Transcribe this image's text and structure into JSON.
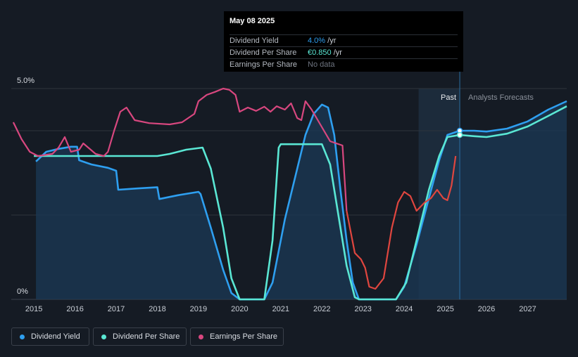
{
  "tooltip": {
    "date": "May 08 2025",
    "rows": [
      {
        "label": "Dividend Yield",
        "value": "4.0%",
        "unit": " /yr"
      },
      {
        "label": "Dividend Per Share",
        "value": "€0.850",
        "unit": " /yr"
      },
      {
        "label": "Earnings Per Share",
        "value": "No data",
        "unit": ""
      }
    ]
  },
  "sections": {
    "past": "Past",
    "forecast": "Analysts Forecasts"
  },
  "legend": [
    {
      "label": "Dividend Yield",
      "color": "#2e9ff0"
    },
    {
      "label": "Dividend Per Share",
      "color": "#5ae7d4"
    },
    {
      "label": "Earnings Per Share",
      "color": "#d8477f"
    }
  ],
  "colors": {
    "yield": "#2e9ff0",
    "dps": "#5ae7d4",
    "eps": "#d8477f",
    "eps_recent": "#e0463f",
    "area": "#1b3a56",
    "grid": "#2e343d",
    "past_band": "#1c2b3b"
  },
  "chart_data": {
    "type": "line",
    "xlim": [
      2014.45,
      2027.95
    ],
    "ylim": [
      0,
      5.0
    ],
    "y_tick_labels": [
      "0%",
      "5.0%"
    ],
    "x_ticks": [
      2015,
      2016,
      2017,
      2018,
      2019,
      2020,
      2021,
      2022,
      2023,
      2024,
      2025,
      2026,
      2027
    ],
    "past_band": [
      2024.35,
      2025.35
    ],
    "marker_x": 2025.35,
    "series": [
      {
        "name": "Dividend Yield",
        "key": "yield",
        "fill": true,
        "points": [
          [
            2015.05,
            3.27
          ],
          [
            2015.3,
            3.5
          ],
          [
            2015.6,
            3.57
          ],
          [
            2015.9,
            3.62
          ],
          [
            2016.05,
            3.62
          ],
          [
            2016.1,
            3.3
          ],
          [
            2016.4,
            3.2
          ],
          [
            2016.8,
            3.12
          ],
          [
            2017.0,
            3.05
          ],
          [
            2017.05,
            2.6
          ],
          [
            2017.5,
            2.63
          ],
          [
            2018.0,
            2.66
          ],
          [
            2018.05,
            2.38
          ],
          [
            2018.5,
            2.47
          ],
          [
            2019.0,
            2.55
          ],
          [
            2019.05,
            2.5
          ],
          [
            2019.3,
            1.7
          ],
          [
            2019.6,
            0.7
          ],
          [
            2019.8,
            0.15
          ],
          [
            2020.0,
            0.0
          ],
          [
            2020.6,
            0.0
          ],
          [
            2020.8,
            0.4
          ],
          [
            2021.1,
            1.9
          ],
          [
            2021.4,
            3.1
          ],
          [
            2021.6,
            3.9
          ],
          [
            2021.8,
            4.4
          ],
          [
            2022.0,
            4.62
          ],
          [
            2022.15,
            4.55
          ],
          [
            2022.3,
            3.9
          ],
          [
            2022.45,
            2.6
          ],
          [
            2022.6,
            1.4
          ],
          [
            2022.75,
            0.4
          ],
          [
            2022.9,
            0.0
          ],
          [
            2023.8,
            0.0
          ],
          [
            2024.0,
            0.3
          ],
          [
            2024.3,
            1.3
          ],
          [
            2024.6,
            2.4
          ],
          [
            2024.85,
            3.3
          ],
          [
            2025.05,
            3.9
          ],
          [
            2025.35,
            4.0
          ],
          [
            2025.7,
            4.0
          ],
          [
            2026.0,
            3.98
          ],
          [
            2026.5,
            4.05
          ],
          [
            2027.0,
            4.22
          ],
          [
            2027.5,
            4.5
          ],
          [
            2027.95,
            4.7
          ]
        ]
      },
      {
        "name": "Dividend Per Share",
        "key": "dps",
        "fill": false,
        "points": [
          [
            2015.0,
            3.4
          ],
          [
            2015.5,
            3.4
          ],
          [
            2016.0,
            3.4
          ],
          [
            2017.0,
            3.4
          ],
          [
            2018.0,
            3.4
          ],
          [
            2018.3,
            3.45
          ],
          [
            2018.7,
            3.55
          ],
          [
            2019.1,
            3.6
          ],
          [
            2019.3,
            3.1
          ],
          [
            2019.6,
            1.7
          ],
          [
            2019.8,
            0.5
          ],
          [
            2020.0,
            0.0
          ],
          [
            2020.6,
            0.0
          ],
          [
            2020.8,
            1.4
          ],
          [
            2020.95,
            3.6
          ],
          [
            2021.0,
            3.68
          ],
          [
            2022.0,
            3.68
          ],
          [
            2022.2,
            3.2
          ],
          [
            2022.4,
            2.0
          ],
          [
            2022.6,
            0.8
          ],
          [
            2022.8,
            0.05
          ],
          [
            2022.9,
            0.0
          ],
          [
            2023.8,
            0.0
          ],
          [
            2024.05,
            0.4
          ],
          [
            2024.35,
            1.6
          ],
          [
            2024.6,
            2.6
          ],
          [
            2024.85,
            3.4
          ],
          [
            2025.05,
            3.85
          ],
          [
            2025.35,
            3.9
          ],
          [
            2025.7,
            3.87
          ],
          [
            2026.0,
            3.85
          ],
          [
            2026.5,
            3.93
          ],
          [
            2027.0,
            4.1
          ],
          [
            2027.5,
            4.35
          ],
          [
            2027.95,
            4.58
          ]
        ]
      },
      {
        "name": "Earnings Per Share",
        "key": "eps",
        "fill": false,
        "points": [
          [
            2014.5,
            4.2
          ],
          [
            2014.7,
            3.8
          ],
          [
            2014.9,
            3.5
          ],
          [
            2015.1,
            3.4
          ],
          [
            2015.45,
            3.45
          ],
          [
            2015.6,
            3.6
          ],
          [
            2015.75,
            3.85
          ],
          [
            2015.9,
            3.5
          ],
          [
            2016.1,
            3.55
          ],
          [
            2016.2,
            3.7
          ],
          [
            2016.5,
            3.45
          ],
          [
            2016.7,
            3.4
          ],
          [
            2016.8,
            3.5
          ],
          [
            2016.95,
            4.0
          ],
          [
            2017.1,
            4.45
          ],
          [
            2017.25,
            4.55
          ],
          [
            2017.45,
            4.25
          ],
          [
            2017.8,
            4.18
          ],
          [
            2018.3,
            4.15
          ],
          [
            2018.6,
            4.2
          ],
          [
            2018.9,
            4.4
          ],
          [
            2019.0,
            4.7
          ],
          [
            2019.2,
            4.85
          ],
          [
            2019.4,
            4.92
          ],
          [
            2019.6,
            5.0
          ],
          [
            2019.75,
            4.97
          ],
          [
            2019.9,
            4.85
          ],
          [
            2020.0,
            4.45
          ],
          [
            2020.2,
            4.55
          ],
          [
            2020.4,
            4.47
          ],
          [
            2020.6,
            4.57
          ],
          [
            2020.75,
            4.45
          ],
          [
            2020.9,
            4.58
          ],
          [
            2021.1,
            4.5
          ],
          [
            2021.25,
            4.65
          ],
          [
            2021.4,
            4.3
          ],
          [
            2021.5,
            4.25
          ],
          [
            2021.6,
            4.7
          ],
          [
            2021.75,
            4.5
          ],
          [
            2021.9,
            4.25
          ],
          [
            2022.05,
            4.0
          ],
          [
            2022.2,
            3.75
          ],
          [
            2022.5,
            3.65
          ],
          [
            2022.6,
            2.1
          ],
          [
            2022.8,
            1.1
          ],
          [
            2022.95,
            0.95
          ],
          [
            2023.05,
            0.75
          ],
          [
            2023.15,
            0.3
          ],
          [
            2023.3,
            0.25
          ],
          [
            2023.5,
            0.5
          ],
          [
            2023.7,
            1.7
          ],
          [
            2023.85,
            2.3
          ],
          [
            2024.0,
            2.55
          ],
          [
            2024.15,
            2.45
          ],
          [
            2024.3,
            2.1
          ],
          [
            2024.5,
            2.3
          ],
          [
            2024.65,
            2.4
          ],
          [
            2024.8,
            2.6
          ],
          [
            2024.95,
            2.4
          ],
          [
            2025.05,
            2.35
          ],
          [
            2025.15,
            2.7
          ],
          [
            2025.25,
            3.4
          ]
        ]
      }
    ],
    "markers": [
      {
        "series": "yield",
        "x": 2025.35,
        "y": 4.0
      },
      {
        "series": "dps",
        "x": 2025.35,
        "y": 3.9
      }
    ]
  }
}
